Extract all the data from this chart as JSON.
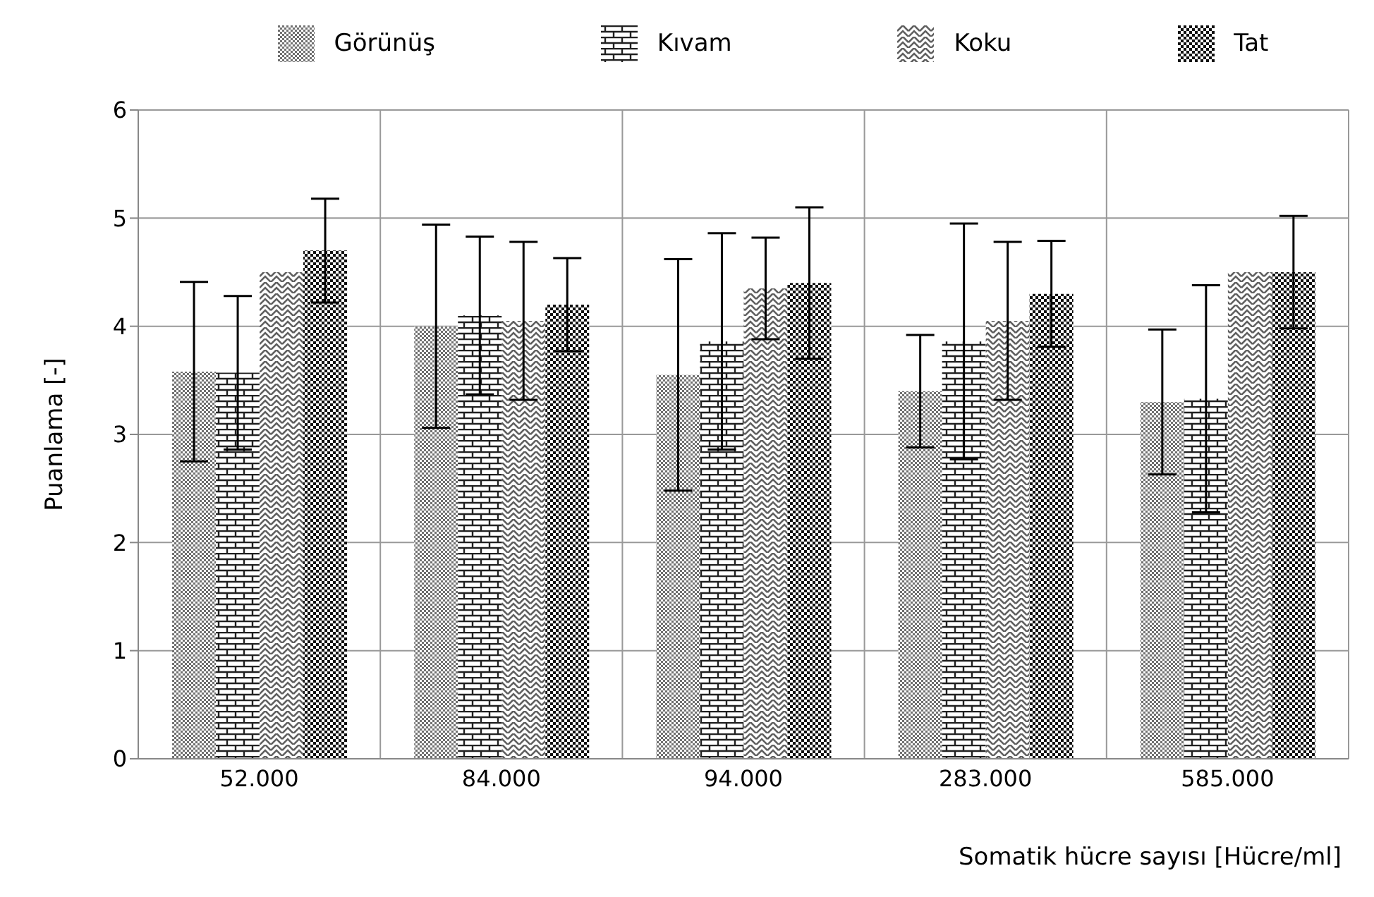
{
  "chart_data": {
    "type": "bar",
    "xlabel": "Somatik hücre sayısı [Hücre/ml]",
    "ylabel": "Puanlama  [-]",
    "categories": [
      "52.000",
      "84.000",
      "94.000",
      "283.000",
      "585.000"
    ],
    "series": [
      {
        "name": "Görünüş",
        "color": "#707070",
        "values": [
          3.58,
          4.0,
          3.55,
          3.4,
          3.3
        ],
        "errors": [
          0.83,
          0.94,
          1.07,
          0.52,
          0.67
        ]
      },
      {
        "name": "Kıvam",
        "color": "#202020",
        "values": [
          3.57,
          4.1,
          3.86,
          3.86,
          3.33
        ],
        "errors": [
          0.71,
          0.73,
          1.0,
          1.09,
          1.05
        ]
      },
      {
        "name": "Koku",
        "color": "#606060",
        "values": [
          4.5,
          4.05,
          4.35,
          4.05,
          4.5
        ],
        "errors": [
          0,
          0.73,
          0.47,
          0.73,
          0
        ]
      },
      {
        "name": "Tat",
        "color": "#101010",
        "values": [
          4.7,
          4.2,
          4.4,
          4.3,
          4.5
        ],
        "errors": [
          0.48,
          0.43,
          0.7,
          0.49,
          0.52
        ]
      }
    ],
    "ylim": [
      0,
      6
    ],
    "yticks": [
      0,
      1,
      2,
      3,
      4,
      5,
      6
    ],
    "grid": true,
    "legend": "top"
  }
}
